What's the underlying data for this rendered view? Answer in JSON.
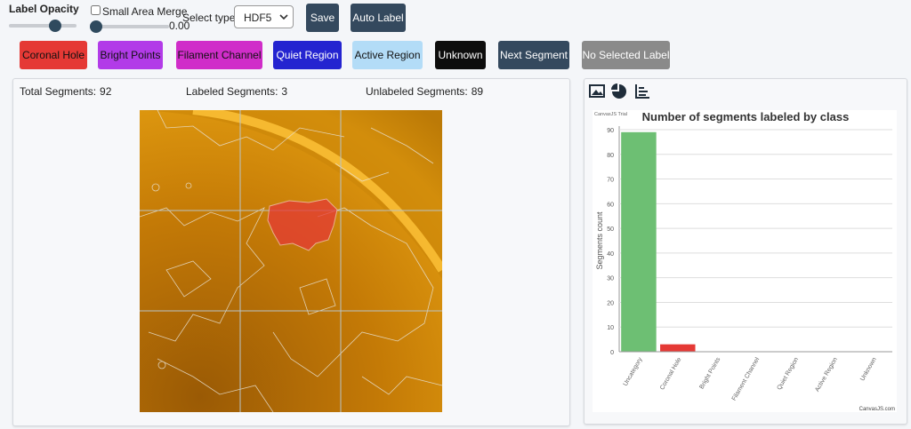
{
  "controls": {
    "label_opacity": "Label Opacity",
    "small_area_merge": "Small Area Merge",
    "merge_value": "0.00",
    "select_type_label": "Select type:",
    "select_type_value": "HDF5",
    "save": "Save",
    "auto_label": "Auto Label"
  },
  "label_buttons": [
    {
      "label": "Coronal Hole",
      "color": "#e53935",
      "text_color": "#111111"
    },
    {
      "label": "Bright Points",
      "color": "#b23be8",
      "text_color": "#111111"
    },
    {
      "label": "Filament Channel",
      "color": "#d02dc9",
      "text_color": "#111111"
    },
    {
      "label": "Quiet Region",
      "color": "#2424d0",
      "text_color": "#ffffff"
    },
    {
      "label": "Active Region",
      "color": "#b3dcf7",
      "text_color": "#111111"
    },
    {
      "label": "Unknown",
      "color": "#0d0d0d",
      "text_color": "#ffffff"
    },
    {
      "label": "Next Segment",
      "color": "#34495e",
      "text_color": "#ffffff"
    },
    {
      "label": "No Selected Label",
      "color": "#8a8a8a",
      "text_color": "#ffffff"
    }
  ],
  "stats": [
    {
      "label": "Total Segments:",
      "value": 92
    },
    {
      "label": "Labeled Segments:",
      "value": 3
    },
    {
      "label": "Unlabeled Segments:",
      "value": 89
    }
  ],
  "chart_data": {
    "type": "bar",
    "title": "Number of segments labeled by class",
    "y_label": "Segments count",
    "categories": [
      "Uncategory",
      "Coronal Hole",
      "Bright Points",
      "Filament Channel",
      "Quiet Region",
      "Active Region",
      "Unknown"
    ],
    "values": [
      89,
      3,
      0,
      0,
      0,
      0,
      0
    ],
    "colors": [
      "#6dbf73",
      "#e53935",
      "#b23be8",
      "#d02dc9",
      "#2424d0",
      "#b3dcf7",
      "#111111"
    ],
    "ylim": [
      0,
      90
    ],
    "yticks": [
      0,
      10,
      20,
      30,
      40,
      50,
      60,
      70,
      80,
      90
    ],
    "grid": true,
    "watermark": "CanvasJS Trial",
    "credit": "CanvasJS.com"
  }
}
